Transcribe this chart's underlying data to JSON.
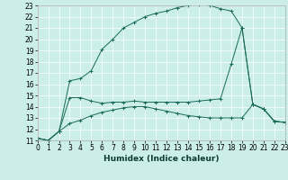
{
  "xlabel": "Humidex (Indice chaleur)",
  "bg_color": "#cbeee8",
  "line_color": "#1a6b5a",
  "grid_color": "#ffffff",
  "xlim": [
    0,
    23
  ],
  "ylim": [
    11,
    23
  ],
  "xticks": [
    0,
    1,
    2,
    3,
    4,
    5,
    6,
    7,
    8,
    9,
    10,
    11,
    12,
    13,
    14,
    15,
    16,
    17,
    18,
    19,
    20,
    21,
    22,
    23
  ],
  "yticks": [
    11,
    12,
    13,
    14,
    15,
    16,
    17,
    18,
    19,
    20,
    21,
    22,
    23
  ],
  "line1_x": [
    0,
    1,
    2,
    3,
    4,
    5,
    6,
    7,
    8,
    9,
    10,
    11,
    12,
    13,
    14,
    15,
    16,
    17,
    18,
    19,
    20,
    21,
    22,
    23
  ],
  "line1_y": [
    11.2,
    11.0,
    11.8,
    16.3,
    16.5,
    17.2,
    19.1,
    20.0,
    21.0,
    21.5,
    22.0,
    22.3,
    22.5,
    22.8,
    23.0,
    23.1,
    23.0,
    22.7,
    22.5,
    21.0,
    14.2,
    13.8,
    12.7,
    12.6
  ],
  "line2_x": [
    0,
    1,
    2,
    3,
    4,
    5,
    6,
    7,
    8,
    9,
    10,
    11,
    12,
    13,
    14,
    15,
    16,
    17,
    18,
    19,
    20,
    21,
    22,
    23
  ],
  "line2_y": [
    11.2,
    11.0,
    11.8,
    14.8,
    14.8,
    14.5,
    14.3,
    14.4,
    14.4,
    14.5,
    14.4,
    14.4,
    14.4,
    14.4,
    14.4,
    14.5,
    14.6,
    14.7,
    17.8,
    21.0,
    14.2,
    13.8,
    12.7,
    12.6
  ],
  "line3_x": [
    0,
    1,
    2,
    3,
    4,
    5,
    6,
    7,
    8,
    9,
    10,
    11,
    12,
    13,
    14,
    15,
    16,
    17,
    18,
    19,
    20,
    21,
    22,
    23
  ],
  "line3_y": [
    11.2,
    11.0,
    11.8,
    12.5,
    12.8,
    13.2,
    13.5,
    13.7,
    13.9,
    14.0,
    14.0,
    13.8,
    13.6,
    13.4,
    13.2,
    13.1,
    13.0,
    13.0,
    13.0,
    13.0,
    14.2,
    13.8,
    12.7,
    12.6
  ],
  "tick_fontsize": 5.5,
  "xlabel_fontsize": 6.5
}
